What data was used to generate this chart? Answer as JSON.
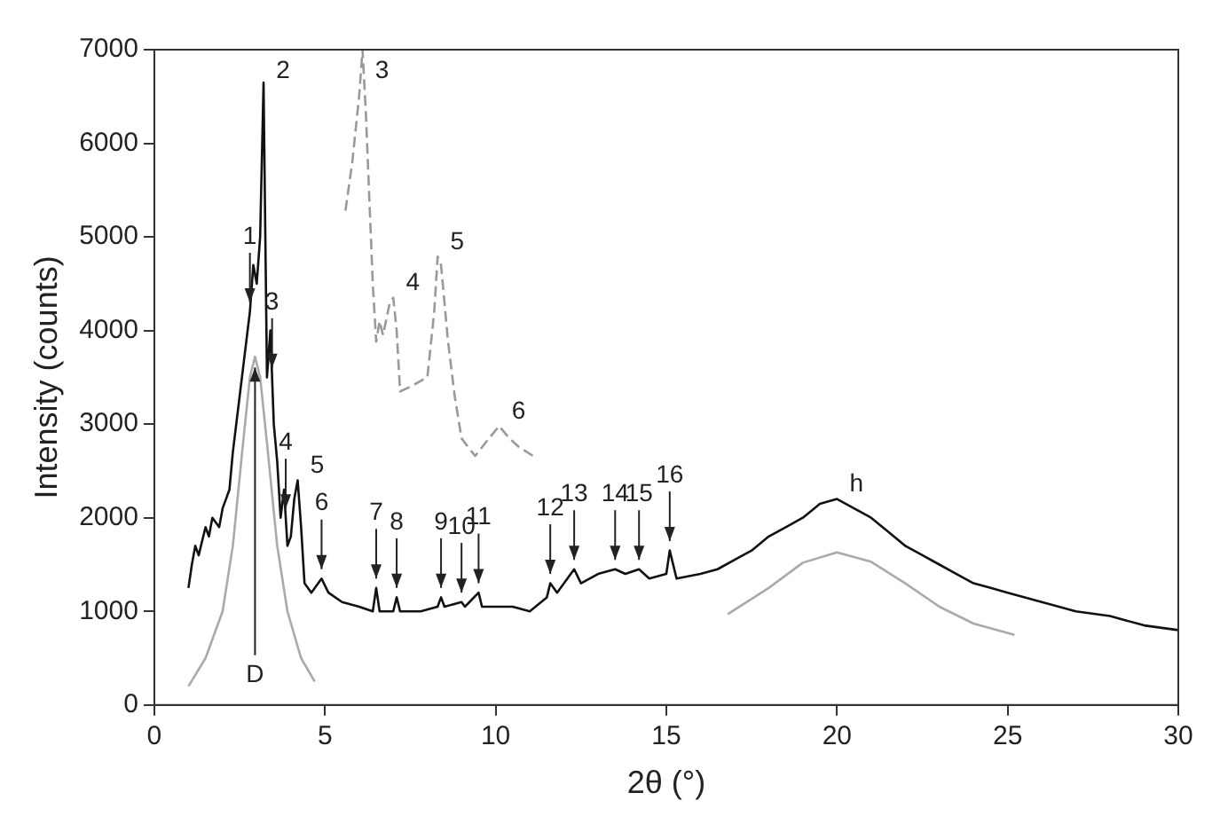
{
  "chart_data": {
    "type": "line",
    "xlabel": "2θ (°)",
    "ylabel": "Intensity (counts)",
    "xlim": [
      0,
      30
    ],
    "xticks": [
      0,
      5,
      10,
      15,
      20,
      25,
      30
    ],
    "ylim": [
      0,
      7000
    ],
    "yticks": [
      0,
      1000,
      2000,
      3000,
      4000,
      5000,
      6000,
      7000
    ],
    "grid": false,
    "legend": false,
    "marker": "none",
    "series": [
      {
        "color": "#111111",
        "line_style": "solid",
        "x": [
          1.0,
          1.1,
          1.2,
          1.3,
          1.5,
          1.6,
          1.7,
          1.9,
          2.0,
          2.1,
          2.2,
          2.3,
          2.4,
          2.5,
          2.6,
          2.7,
          2.8,
          2.9,
          3.0,
          3.1,
          3.2,
          3.3,
          3.4,
          3.5,
          3.6,
          3.7,
          3.8,
          3.9,
          4.0,
          4.1,
          4.2,
          4.3,
          4.4,
          4.6,
          4.9,
          5.1,
          5.5,
          6.0,
          6.4,
          6.5,
          6.6,
          7.0,
          7.1,
          7.2,
          7.8,
          8.3,
          8.4,
          8.5,
          9.0,
          9.1,
          9.5,
          9.6,
          10.5,
          11.0,
          11.5,
          11.6,
          11.8,
          12.3,
          12.5,
          13.0,
          13.5,
          13.8,
          14.2,
          14.5,
          15.0,
          15.1,
          15.3,
          16.0,
          16.5,
          17.0,
          17.5,
          18.0,
          18.5,
          19.0,
          19.5,
          20.0,
          20.5,
          21.0,
          21.5,
          22.0,
          22.5,
          23.0,
          23.5,
          24.0,
          24.5,
          25.0,
          26.0,
          27.0,
          28.0,
          29.0,
          30.0
        ],
        "values": [
          1250,
          1500,
          1700,
          1600,
          1900,
          1800,
          2000,
          1900,
          2100,
          2200,
          2300,
          2700,
          3000,
          3300,
          3600,
          3900,
          4200,
          4700,
          4500,
          5000,
          6650,
          3500,
          4000,
          3000,
          2600,
          2000,
          2300,
          1700,
          1800,
          2200,
          2400,
          1900,
          1300,
          1200,
          1350,
          1200,
          1100,
          1050,
          1000,
          1250,
          1000,
          1000,
          1150,
          1000,
          1000,
          1050,
          1150,
          1050,
          1100,
          1050,
          1200,
          1050,
          1050,
          1000,
          1150,
          1300,
          1200,
          1450,
          1300,
          1400,
          1450,
          1400,
          1450,
          1350,
          1400,
          1650,
          1350,
          1400,
          1450,
          1550,
          1650,
          1800,
          1900,
          2000,
          2150,
          2200,
          2100,
          2000,
          1850,
          1700,
          1600,
          1500,
          1400,
          1300,
          1250,
          1200,
          1100,
          1000,
          950,
          850,
          800
        ]
      },
      {
        "color": "#999999",
        "line_style": "dashed",
        "x": [
          5.6,
          5.8,
          6.0,
          6.1,
          6.2,
          6.4,
          6.5,
          6.6,
          6.7,
          6.9,
          7.0,
          7.1,
          7.2,
          7.5,
          8.0,
          8.2,
          8.3,
          8.4,
          8.6,
          8.8,
          9.0,
          9.2,
          9.4,
          9.7,
          10.1,
          10.4,
          10.7,
          11.1
        ],
        "values": [
          5280,
          5800,
          6500,
          7000,
          6300,
          4500,
          3880,
          4100,
          3950,
          4300,
          4350,
          4000,
          3350,
          3400,
          3500,
          4200,
          4790,
          4700,
          3900,
          3300,
          2850,
          2750,
          2660,
          2800,
          2980,
          2850,
          2750,
          2660
        ]
      },
      {
        "color": "#aaaaaa",
        "line_style": "solid",
        "x": [
          1.0,
          1.5,
          2.0,
          2.3,
          2.6,
          2.8,
          2.95,
          3.1,
          3.3,
          3.6,
          3.9,
          4.3,
          4.7
        ],
        "values": [
          200,
          500,
          1000,
          1700,
          2800,
          3500,
          3720,
          3500,
          2800,
          1700,
          1000,
          500,
          250
        ]
      },
      {
        "color": "#aaaaaa",
        "line_style": "solid",
        "x": [
          16.8,
          18,
          19,
          20,
          21,
          22,
          23,
          24,
          25.2
        ],
        "values": [
          970,
          1250,
          1520,
          1630,
          1530,
          1300,
          1050,
          870,
          750
        ]
      }
    ],
    "annotations": [
      {
        "text": "1",
        "x": 2.8,
        "y": 4300
      },
      {
        "text": "2",
        "x": 3.2,
        "y": 6650
      },
      {
        "text": "3",
        "x": 3.45,
        "y": 3600
      },
      {
        "text": "4",
        "x": 3.85,
        "y": 2100
      },
      {
        "text": "5",
        "x": 4.2,
        "y": 2400
      },
      {
        "text": "6",
        "x": 4.9,
        "y": 1450
      },
      {
        "text": "7",
        "x": 6.5,
        "y": 1350
      },
      {
        "text": "8",
        "x": 7.1,
        "y": 1250
      },
      {
        "text": "9",
        "x": 8.4,
        "y": 1250
      },
      {
        "text": "10",
        "x": 9.0,
        "y": 1200
      },
      {
        "text": "11",
        "x": 9.5,
        "y": 1300
      },
      {
        "text": "12",
        "x": 11.6,
        "y": 1400
      },
      {
        "text": "13",
        "x": 12.3,
        "y": 1550
      },
      {
        "text": "14",
        "x": 13.5,
        "y": 1550
      },
      {
        "text": "15",
        "x": 14.2,
        "y": 1550
      },
      {
        "text": "16",
        "x": 15.1,
        "y": 1750
      },
      {
        "text": "3",
        "x": 6.1,
        "y": 7000
      },
      {
        "text": "4",
        "x": 7.0,
        "y": 4350
      },
      {
        "text": "5",
        "x": 8.3,
        "y": 4790
      },
      {
        "text": "6",
        "x": 10.1,
        "y": 2980
      },
      {
        "text": "h",
        "x": 20.0,
        "y": 2200
      },
      {
        "text": "D",
        "x": 2.95,
        "y": 3720
      }
    ]
  }
}
